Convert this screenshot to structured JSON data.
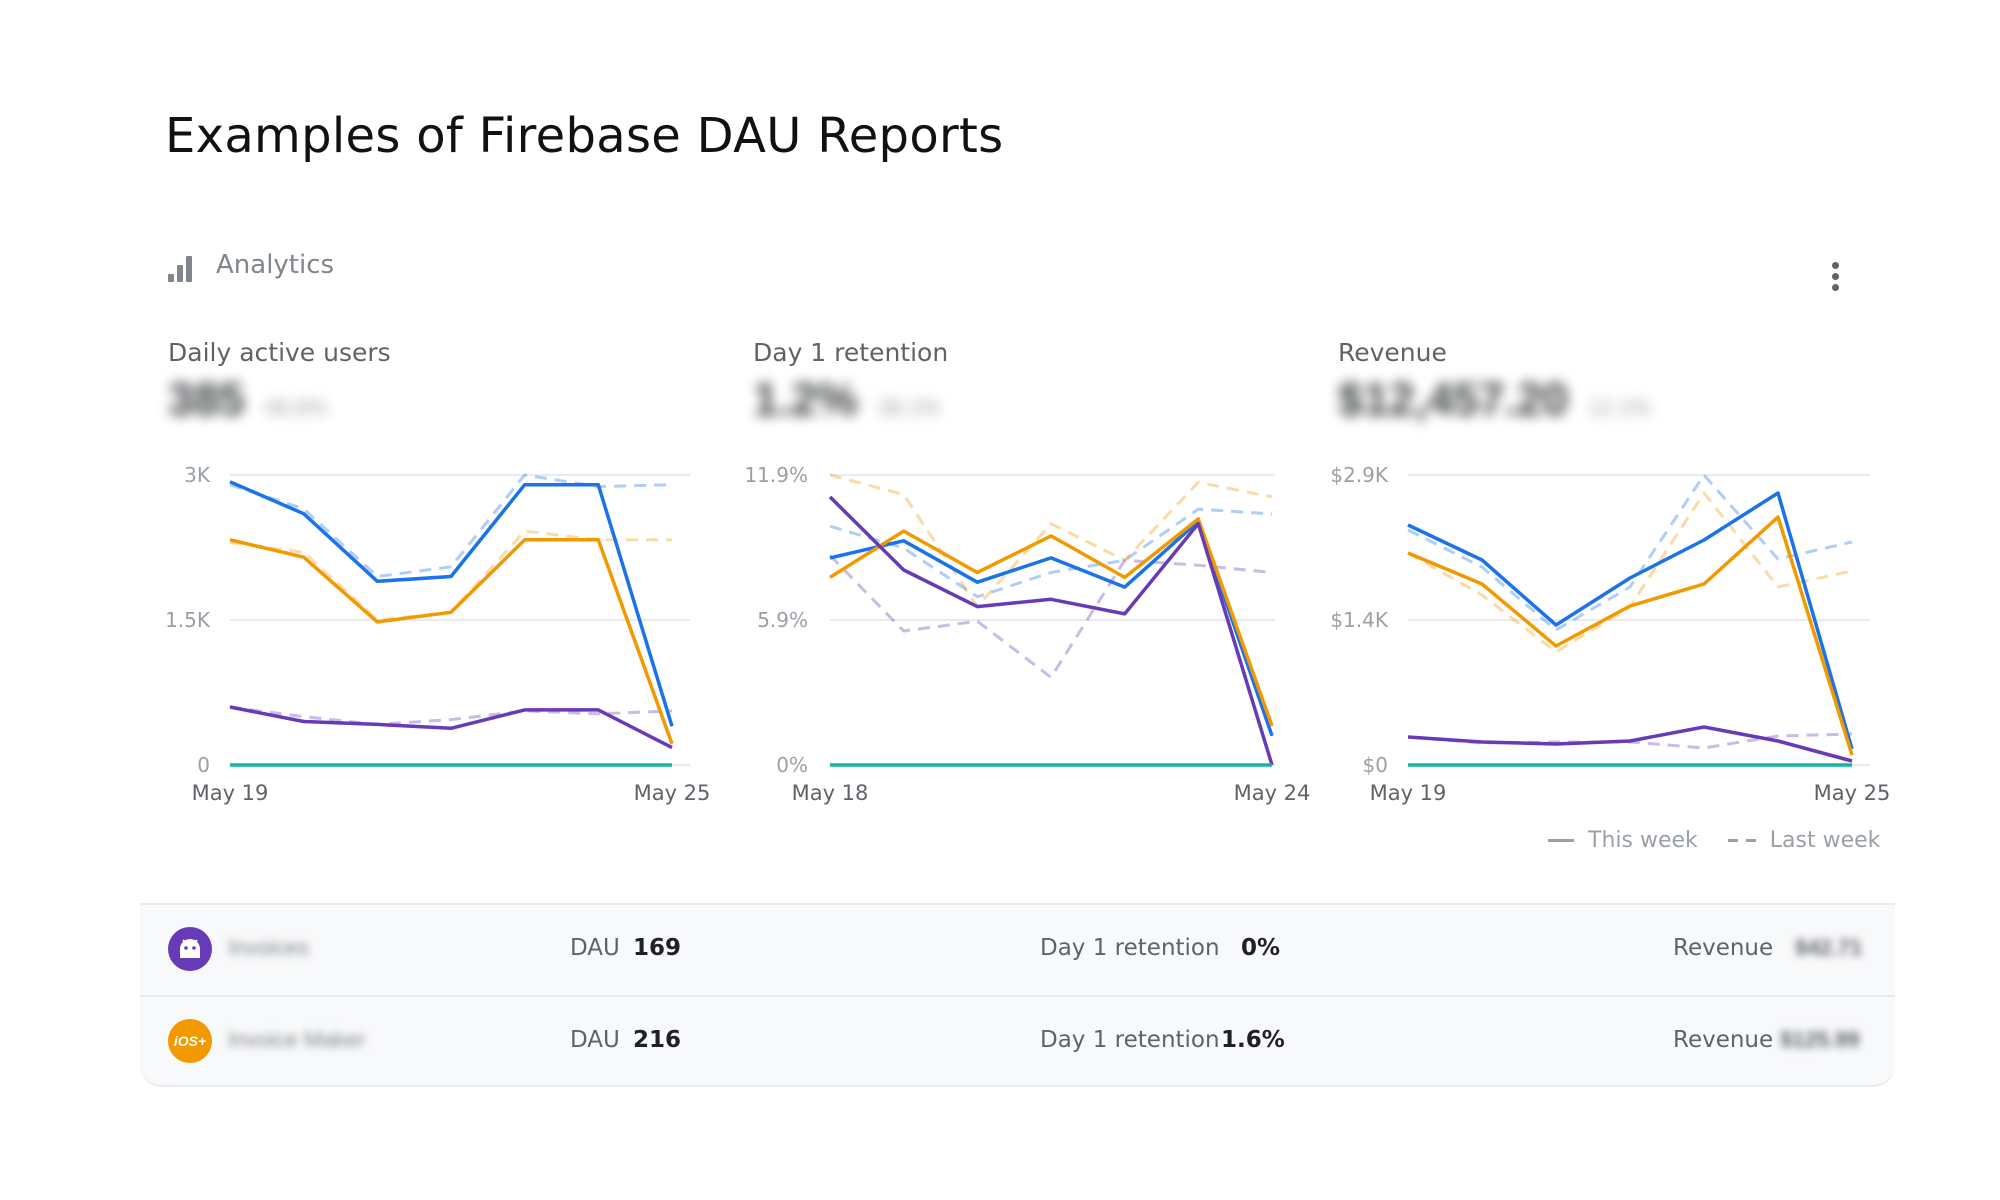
{
  "heading": "Examples of Firebase DAU Reports",
  "card": {
    "title": "Analytics",
    "icon": "bar-chart-icon",
    "menu_icon": "more-vert-icon"
  },
  "panels": [
    {
      "title": "Daily active users",
      "value_blurred": "385",
      "delta_blurred": "46.6%"
    },
    {
      "title": "Day 1 retention",
      "value_blurred": "1.2%",
      "delta_blurred": "38.1%"
    },
    {
      "title": "Revenue",
      "value_blurred": "$12,457.20",
      "delta_blurred": "12.1%"
    }
  ],
  "colors": {
    "blue": "#1a73e8",
    "orange": "#f29900",
    "purple": "#673ab7",
    "teal": "#12b5a0",
    "grid": "#e8eaed"
  },
  "chart_data": [
    {
      "type": "line",
      "title": "Daily active users",
      "yticks": [
        "3K",
        "1.5K",
        "0"
      ],
      "ylim": [
        0,
        3000
      ],
      "x_labels": [
        "May 19",
        "May 25"
      ],
      "series": [
        {
          "color": "#1a73e8",
          "style": "solid",
          "values": [
            2930,
            2600,
            1900,
            1950,
            2900,
            2900,
            400
          ]
        },
        {
          "color": "#f29900",
          "style": "solid",
          "values": [
            2330,
            2150,
            1480,
            1580,
            2330,
            2330,
            220
          ]
        },
        {
          "color": "#673ab7",
          "style": "solid",
          "values": [
            600,
            450,
            420,
            380,
            570,
            570,
            180
          ]
        },
        {
          "color": "#12b5a0",
          "style": "solid",
          "values": [
            0,
            0,
            0,
            0,
            0,
            0,
            0
          ]
        },
        {
          "color": "#1a73e8",
          "style": "dashed",
          "values": [
            2900,
            2650,
            1950,
            2050,
            3000,
            2880,
            2900
          ]
        },
        {
          "color": "#f29900",
          "style": "dashed",
          "values": [
            2300,
            2200,
            1500,
            1580,
            2420,
            2330,
            2330
          ]
        },
        {
          "color": "#673ab7",
          "style": "dashed",
          "values": [
            600,
            500,
            420,
            470,
            560,
            530,
            560
          ]
        }
      ]
    },
    {
      "type": "line",
      "title": "Day 1 retention",
      "yticks": [
        "11.9%",
        "5.9%",
        "0%"
      ],
      "ylim": [
        0,
        11.9
      ],
      "x_labels": [
        "May 18",
        "May 24"
      ],
      "series": [
        {
          "color": "#1a73e8",
          "style": "solid",
          "values": [
            8.5,
            9.2,
            7.5,
            8.5,
            7.3,
            10.0,
            1.2
          ]
        },
        {
          "color": "#f29900",
          "style": "solid",
          "values": [
            7.7,
            9.6,
            7.9,
            9.4,
            7.7,
            10.1,
            1.6
          ]
        },
        {
          "color": "#673ab7",
          "style": "solid",
          "values": [
            11.0,
            8.0,
            6.5,
            6.8,
            6.2,
            9.9,
            0
          ]
        },
        {
          "color": "#12b5a0",
          "style": "solid",
          "values": [
            0,
            0,
            0,
            0,
            0,
            0,
            0
          ]
        },
        {
          "color": "#1a73e8",
          "style": "dashed",
          "values": [
            9.8,
            8.9,
            6.9,
            7.9,
            8.4,
            10.5,
            10.3
          ]
        },
        {
          "color": "#f29900",
          "style": "dashed",
          "values": [
            11.9,
            11.1,
            6.5,
            9.9,
            8.4,
            11.6,
            11.0
          ]
        },
        {
          "color": "#673ab7",
          "style": "dashed",
          "values": [
            8.6,
            5.5,
            5.9,
            3.6,
            8.4,
            8.2,
            7.9
          ]
        }
      ]
    },
    {
      "type": "line",
      "title": "Revenue",
      "yticks": [
        "$2.9K",
        "$1.4K",
        "$0"
      ],
      "ylim": [
        0,
        2900
      ],
      "x_labels": [
        "May 19",
        "May 25"
      ],
      "series": [
        {
          "color": "#1a73e8",
          "style": "solid",
          "values": [
            2400,
            2050,
            1400,
            1870,
            2250,
            2720,
            160
          ]
        },
        {
          "color": "#f29900",
          "style": "solid",
          "values": [
            2120,
            1810,
            1190,
            1590,
            1810,
            2480,
            100
          ]
        },
        {
          "color": "#673ab7",
          "style": "solid",
          "values": [
            280,
            230,
            210,
            240,
            380,
            240,
            40
          ]
        },
        {
          "color": "#12b5a0",
          "style": "solid",
          "values": [
            0,
            0,
            0,
            0,
            0,
            0,
            0
          ]
        },
        {
          "color": "#1a73e8",
          "style": "dashed",
          "values": [
            2350,
            1980,
            1350,
            1780,
            2900,
            2060,
            2230
          ]
        },
        {
          "color": "#f29900",
          "style": "dashed",
          "values": [
            2120,
            1700,
            1130,
            1580,
            2720,
            1780,
            1940
          ]
        },
        {
          "color": "#673ab7",
          "style": "dashed",
          "values": [
            280,
            220,
            230,
            230,
            170,
            290,
            310
          ]
        }
      ]
    }
  ],
  "legend": {
    "this_week": "This week",
    "last_week": "Last week"
  },
  "apps": [
    {
      "platform": "android",
      "icon": "android-icon",
      "icon_color": "#673ab7",
      "name_blurred": "Invoices",
      "dau_label": "DAU",
      "dau": "169",
      "retention_label": "Day 1 retention",
      "retention": "0%",
      "revenue_label": "Revenue",
      "revenue_blurred": "$42.71"
    },
    {
      "platform": "ios",
      "icon": "ios-icon",
      "icon_color": "#f29900",
      "icon_text": "iOS+",
      "name_blurred": "Invoice Maker",
      "dau_label": "DAU",
      "dau": "216",
      "retention_label": "Day 1 retention",
      "retention": "1.6%",
      "revenue_label": "Revenue",
      "revenue_blurred": "$125.99"
    }
  ]
}
